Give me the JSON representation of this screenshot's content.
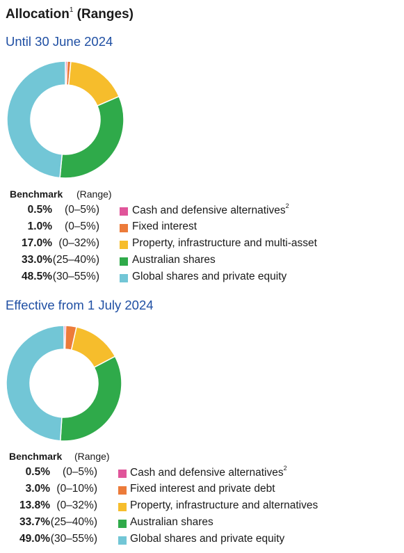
{
  "title": "Allocation",
  "title_sup": "1",
  "colors": {
    "cash": "#e0559a",
    "fixed": "#ec7b3a",
    "property": "#f6bd2c",
    "australian": "#2faa4a",
    "global": "#72c6d6",
    "section_title": "#1f4fa3"
  },
  "chart_data": [
    {
      "type": "pie",
      "variant": "donut",
      "title": "Until 30 June 2024",
      "header": {
        "benchmark": "Benchmark",
        "range": "(Range)"
      },
      "slices": [
        {
          "label": "Cash and defensive alternatives",
          "sup": "2",
          "value": 0.5,
          "value_text": "0.5%",
          "range": "(0–5%)",
          "color": "#e0559a"
        },
        {
          "label": "Fixed interest",
          "sup": "",
          "value": 1.0,
          "value_text": "1.0%",
          "range": "(0–5%)",
          "color": "#ec7b3a"
        },
        {
          "label": "Property, infrastructure and multi-asset",
          "sup": "",
          "value": 17.0,
          "value_text": "17.0%",
          "range": "(0–32%)",
          "color": "#f6bd2c"
        },
        {
          "label": "Australian shares",
          "sup": "",
          "value": 33.0,
          "value_text": "33.0%",
          "range": "(25–40%)",
          "color": "#2faa4a"
        },
        {
          "label": "Global shares and private equity",
          "sup": "",
          "value": 48.5,
          "value_text": "48.5%",
          "range": "(30–55%)",
          "color": "#72c6d6"
        }
      ]
    },
    {
      "type": "pie",
      "variant": "donut",
      "title": "Effective from 1 July 2024",
      "header": {
        "benchmark": "Benchmark",
        "range": "(Range)"
      },
      "slices": [
        {
          "label": "Cash and defensive alternatives",
          "sup": "2",
          "value": 0.5,
          "value_text": "0.5%",
          "range": "(0–5%)",
          "color": "#e0559a"
        },
        {
          "label": "Fixed interest and private debt",
          "sup": "",
          "value": 3.0,
          "value_text": "3.0%",
          "range": "(0–10%)",
          "color": "#ec7b3a"
        },
        {
          "label": "Property, infrastructure and alternatives",
          "sup": "",
          "value": 13.8,
          "value_text": "13.8%",
          "range": "(0–32%)",
          "color": "#f6bd2c"
        },
        {
          "label": "Australian shares",
          "sup": "",
          "value": 33.7,
          "value_text": "33.7%",
          "range": "(25–40%)",
          "color": "#2faa4a"
        },
        {
          "label": "Global shares and private equity",
          "sup": "",
          "value": 49.0,
          "value_text": "49.0%",
          "range": "(30–55%)",
          "color": "#72c6d6"
        }
      ]
    }
  ]
}
